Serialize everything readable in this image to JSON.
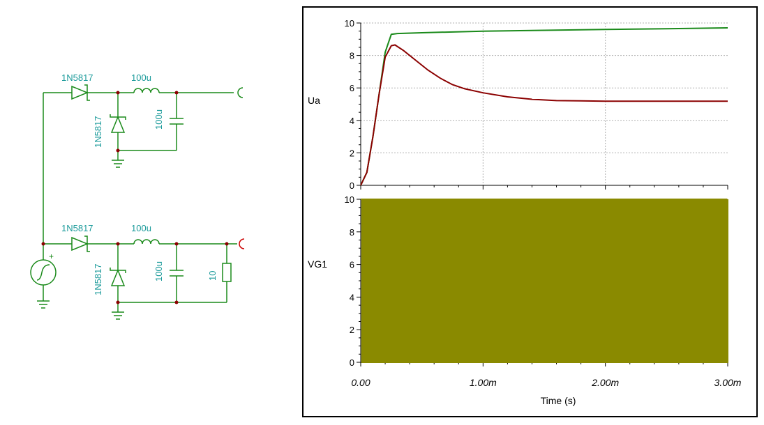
{
  "schematic": {
    "components": {
      "diode_top": "1N5817",
      "diode_top_clamp": "1N5817",
      "inductor_top": "100u",
      "capacitor_top": "100u",
      "diode_bottom": "1N5817",
      "diode_bottom_clamp": "1N5817",
      "inductor_bottom": "100u",
      "capacitor_bottom": "100u",
      "resistor_load": "10"
    },
    "source_polarity": "+",
    "colors": {
      "wire": "#1a8a1a",
      "node": "#8b0000",
      "label": "#1a9a9a",
      "probe_top": "#1a8a1a",
      "probe_bottom": "#cc0000"
    }
  },
  "chart_data": [
    {
      "type": "line",
      "title": "",
      "ylabel": "Ua",
      "xlabel": "Time (s)",
      "xlim": [
        0,
        3.0
      ],
      "ylim": [
        0,
        10
      ],
      "yticks": [
        "0",
        "2",
        "4",
        "6",
        "8",
        "10"
      ],
      "grid": true,
      "series": [
        {
          "name": "",
          "color": "#1a8a1a",
          "x": [
            0,
            0.05,
            0.1,
            0.15,
            0.2,
            0.25,
            0.3,
            0.5,
            1.0,
            1.5,
            2.0,
            2.5,
            3.0
          ],
          "y": [
            0,
            0.8,
            3.0,
            5.6,
            8.2,
            9.3,
            9.35,
            9.4,
            9.5,
            9.55,
            9.6,
            9.65,
            9.7
          ]
        },
        {
          "name": "",
          "color": "#8b0000",
          "x": [
            0,
            0.05,
            0.1,
            0.15,
            0.2,
            0.25,
            0.28,
            0.35,
            0.45,
            0.55,
            0.65,
            0.75,
            0.85,
            1.0,
            1.2,
            1.4,
            1.6,
            1.8,
            2.0,
            2.5,
            3.0
          ],
          "y": [
            0,
            0.8,
            3.0,
            5.6,
            7.9,
            8.6,
            8.65,
            8.3,
            7.7,
            7.1,
            6.6,
            6.2,
            5.95,
            5.7,
            5.45,
            5.3,
            5.22,
            5.2,
            5.18,
            5.18,
            5.18
          ]
        }
      ]
    },
    {
      "type": "line",
      "title": "",
      "ylabel": "VG1",
      "xlabel": "Time (s)",
      "xlim": [
        0,
        3.0
      ],
      "ylim": [
        0,
        10
      ],
      "yticks": [
        "0",
        "2",
        "4",
        "6",
        "8",
        "10"
      ],
      "xticks": [
        "0.00",
        "1.00m",
        "2.00m",
        "3.00m"
      ],
      "grid": true,
      "series": [
        {
          "name": "",
          "color": "#8a8a00",
          "waveform": "square",
          "low": 0,
          "high": 10,
          "period": 0.02,
          "duty": 0.5,
          "end_value": 5
        }
      ]
    }
  ]
}
